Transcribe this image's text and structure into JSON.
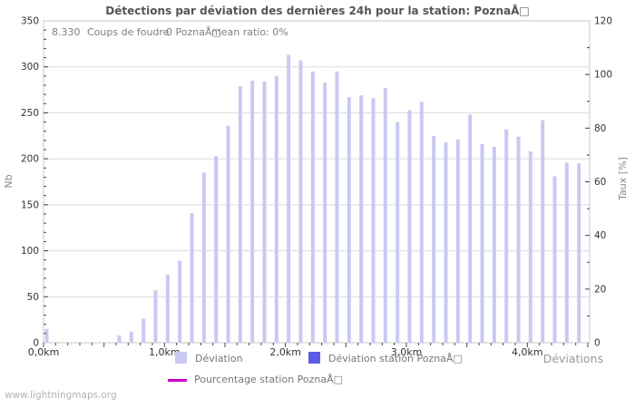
{
  "title": "Détections par déviation des dernières 24h pour la station: PoznaÅ□",
  "stats": {
    "total": "8.330",
    "total_label": "Coups de foudre",
    "station_count": "0 PoznaÅ□",
    "mean_ratio": "mean ratio: 0%"
  },
  "legend": {
    "deviation_label": "Déviation",
    "station_label": "Déviation station PoznaÅ□",
    "percentage_label": "Pourcentage station PoznaÅ□"
  },
  "xaxis_title": "Déviations",
  "footer": "www.lightningmaps.org",
  "colors": {
    "bar": "#c9c9f2",
    "station_bar": "#5b5be6",
    "percentage_line": "#cc00cc",
    "grid": "#dcdcdc",
    "border": "#c8c8c8",
    "tick": "#444444",
    "tick_label": "#333333",
    "axis_unit_label": "#888888"
  },
  "chart_data": {
    "type": "bar",
    "title": "Détections par déviation des dernières 24h pour la station: PoznaÅ□",
    "xlabel": "Déviations",
    "ylabel_left": "Nb",
    "ylabel_right": "Taux [%]",
    "x_unit": "km",
    "x_tick_labels": [
      "0,0km",
      "1,0km",
      "2,0km",
      "3,0km",
      "4,0km"
    ],
    "xlim_km": [
      0,
      4.515
    ],
    "ylim_left": [
      0,
      350
    ],
    "ylim_right": [
      0,
      120
    ],
    "grid": "horizontal-only",
    "legend_position": "bottom",
    "x": [
      0.0,
      0.1,
      0.2,
      0.3,
      0.4,
      0.5,
      0.6,
      0.7,
      0.8,
      0.9,
      1.0,
      1.1,
      1.2,
      1.3,
      1.4,
      1.5,
      1.6,
      1.7,
      1.8,
      1.9,
      2.0,
      2.1,
      2.2,
      2.3,
      2.4,
      2.5,
      2.6,
      2.7,
      2.8,
      2.9,
      3.0,
      3.1,
      3.2,
      3.3,
      3.4,
      3.5,
      3.6,
      3.7,
      3.8,
      3.9,
      4.0,
      4.1,
      4.2,
      4.3,
      4.4
    ],
    "series": [
      {
        "name": "Déviation",
        "axis": "left",
        "values": [
          15,
          0,
          0,
          0,
          0,
          0,
          8,
          12,
          26,
          57,
          74,
          89,
          141,
          185,
          203,
          236,
          279,
          285,
          284,
          290,
          313,
          307,
          295,
          283,
          295,
          267,
          269,
          266,
          277,
          240,
          253,
          262,
          225,
          218,
          221,
          248,
          216,
          213,
          232,
          224,
          208,
          242,
          181,
          196,
          195
        ]
      },
      {
        "name": "Déviation station PoznaÅ□",
        "axis": "left",
        "values": [],
        "note": "no visible bars; station count is 0"
      },
      {
        "name": "Pourcentage station PoznaÅ□",
        "axis": "right",
        "values": [],
        "note": "no visible line; mean ratio 0%"
      }
    ]
  }
}
